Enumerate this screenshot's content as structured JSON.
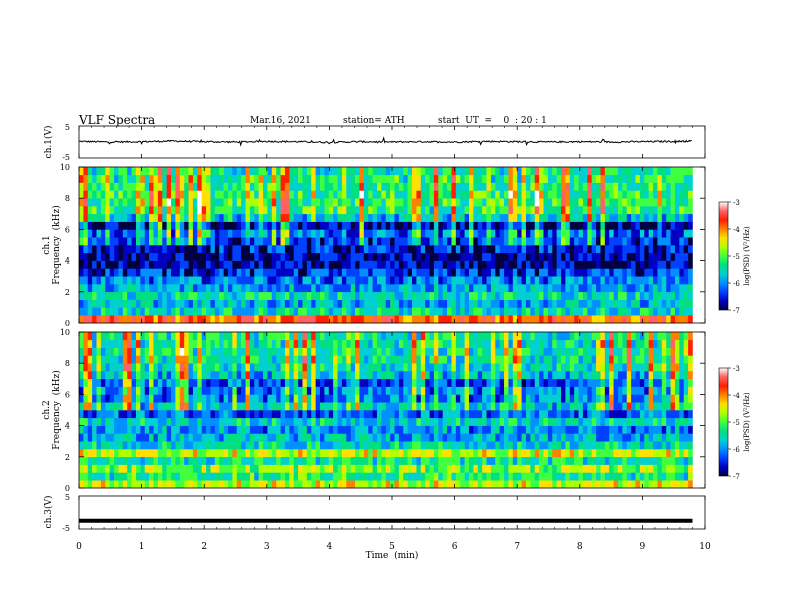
{
  "header": {
    "title": "VLF  Spectra",
    "date": "Mar.16, 2021",
    "station": "station= ATH",
    "start": "start  UT  =    0  : 20 : 1"
  },
  "colorbar": {
    "label": "log(PSD) (V²/Hz)",
    "ticks": [
      "-3",
      "-4",
      "-5",
      "-6",
      "-7"
    ],
    "colors": [
      "#ffffff",
      "#ff6060",
      "#ff2000",
      "#ff8000",
      "#ffe000",
      "#b0ff00",
      "#40ff40",
      "#00e080",
      "#00d0d0",
      "#0090ff",
      "#0040ff",
      "#0000c0",
      "#000040"
    ]
  },
  "chart_data": [
    {
      "type": "line",
      "panel": "ch.1 waveform",
      "ylabel": "ch.1(V)",
      "ylim": [
        -5,
        5
      ],
      "yticks": [
        "5",
        "-5"
      ],
      "xlim": [
        0,
        10
      ],
      "x": [
        0,
        0.5,
        1,
        1.5,
        2,
        2.5,
        3,
        3.5,
        4,
        4.5,
        5,
        5.5,
        6,
        6.5,
        7,
        7.5,
        8,
        8.5,
        9,
        9.5,
        9.8
      ],
      "y": [
        0.2,
        0.0,
        0.1,
        0.3,
        0.1,
        0.0,
        0.2,
        0.1,
        -0.1,
        0.1,
        0.0,
        0.1,
        0.0,
        0.2,
        0.1,
        0.0,
        0.1,
        0.0,
        0.1,
        0.2,
        0.3
      ]
    },
    {
      "type": "heatmap",
      "panel": "ch.1 spectrogram",
      "ylabel_line1": "ch.1",
      "ylabel_line2": "Frequency  (kHz)",
      "ylim": [
        0,
        10
      ],
      "yticks": [
        "0",
        "2",
        "4",
        "6",
        "8",
        "10"
      ],
      "xlim": [
        0,
        9.8
      ],
      "zlim": [
        -7,
        -3
      ],
      "freq_bands_khz": [
        0,
        0.5,
        1,
        1.5,
        2,
        2.5,
        3,
        3.5,
        4,
        4.5,
        5,
        5.5,
        6,
        6.5,
        7,
        7.5,
        8,
        8.5,
        9,
        9.5
      ],
      "mean_log_psd": [
        -3.8,
        -5.5,
        -5.8,
        -5.5,
        -5.9,
        -6.1,
        -6.4,
        -6.8,
        -6.8,
        -6.6,
        -6.4,
        -6.2,
        -6.8,
        -5.7,
        -5.3,
        -5.2,
        -5.2,
        -5.3,
        -5.3,
        -5.4
      ]
    },
    {
      "type": "heatmap",
      "panel": "ch.2 spectrogram",
      "ylabel_line1": "ch.2",
      "ylabel_line2": "Frequency  (kHz)",
      "ylim": [
        0,
        10
      ],
      "yticks": [
        "0",
        "2",
        "4",
        "6",
        "8",
        "10"
      ],
      "xlim": [
        0,
        9.8
      ],
      "zlim": [
        -7,
        -3
      ],
      "freq_bands_khz": [
        0,
        0.5,
        1,
        1.5,
        2,
        2.5,
        3,
        3.5,
        4,
        4.5,
        5,
        5.5,
        6,
        6.5,
        7,
        7.5,
        8,
        8.5,
        9,
        9.5
      ],
      "mean_log_psd": [
        -4.6,
        -5.3,
        -4.8,
        -5.4,
        -4.6,
        -5.6,
        -5.8,
        -6.0,
        -5.6,
        -6.2,
        -5.7,
        -6.0,
        -6.1,
        -6.3,
        -5.8,
        -5.5,
        -5.4,
        -5.4,
        -5.4,
        -5.4
      ]
    },
    {
      "type": "line",
      "panel": "ch.3 waveform",
      "ylabel": "ch.3(V)",
      "ylim": [
        -5,
        5
      ],
      "yticks": [
        "5",
        "-5"
      ],
      "xlim": [
        0,
        10
      ],
      "x": [
        0,
        9.8
      ],
      "y": [
        -2.5,
        -2.5
      ]
    }
  ],
  "xaxis": {
    "label": "Time  (min)",
    "ticks": [
      "0",
      "1",
      "2",
      "3",
      "4",
      "5",
      "6",
      "7",
      "8",
      "9",
      "10"
    ]
  }
}
